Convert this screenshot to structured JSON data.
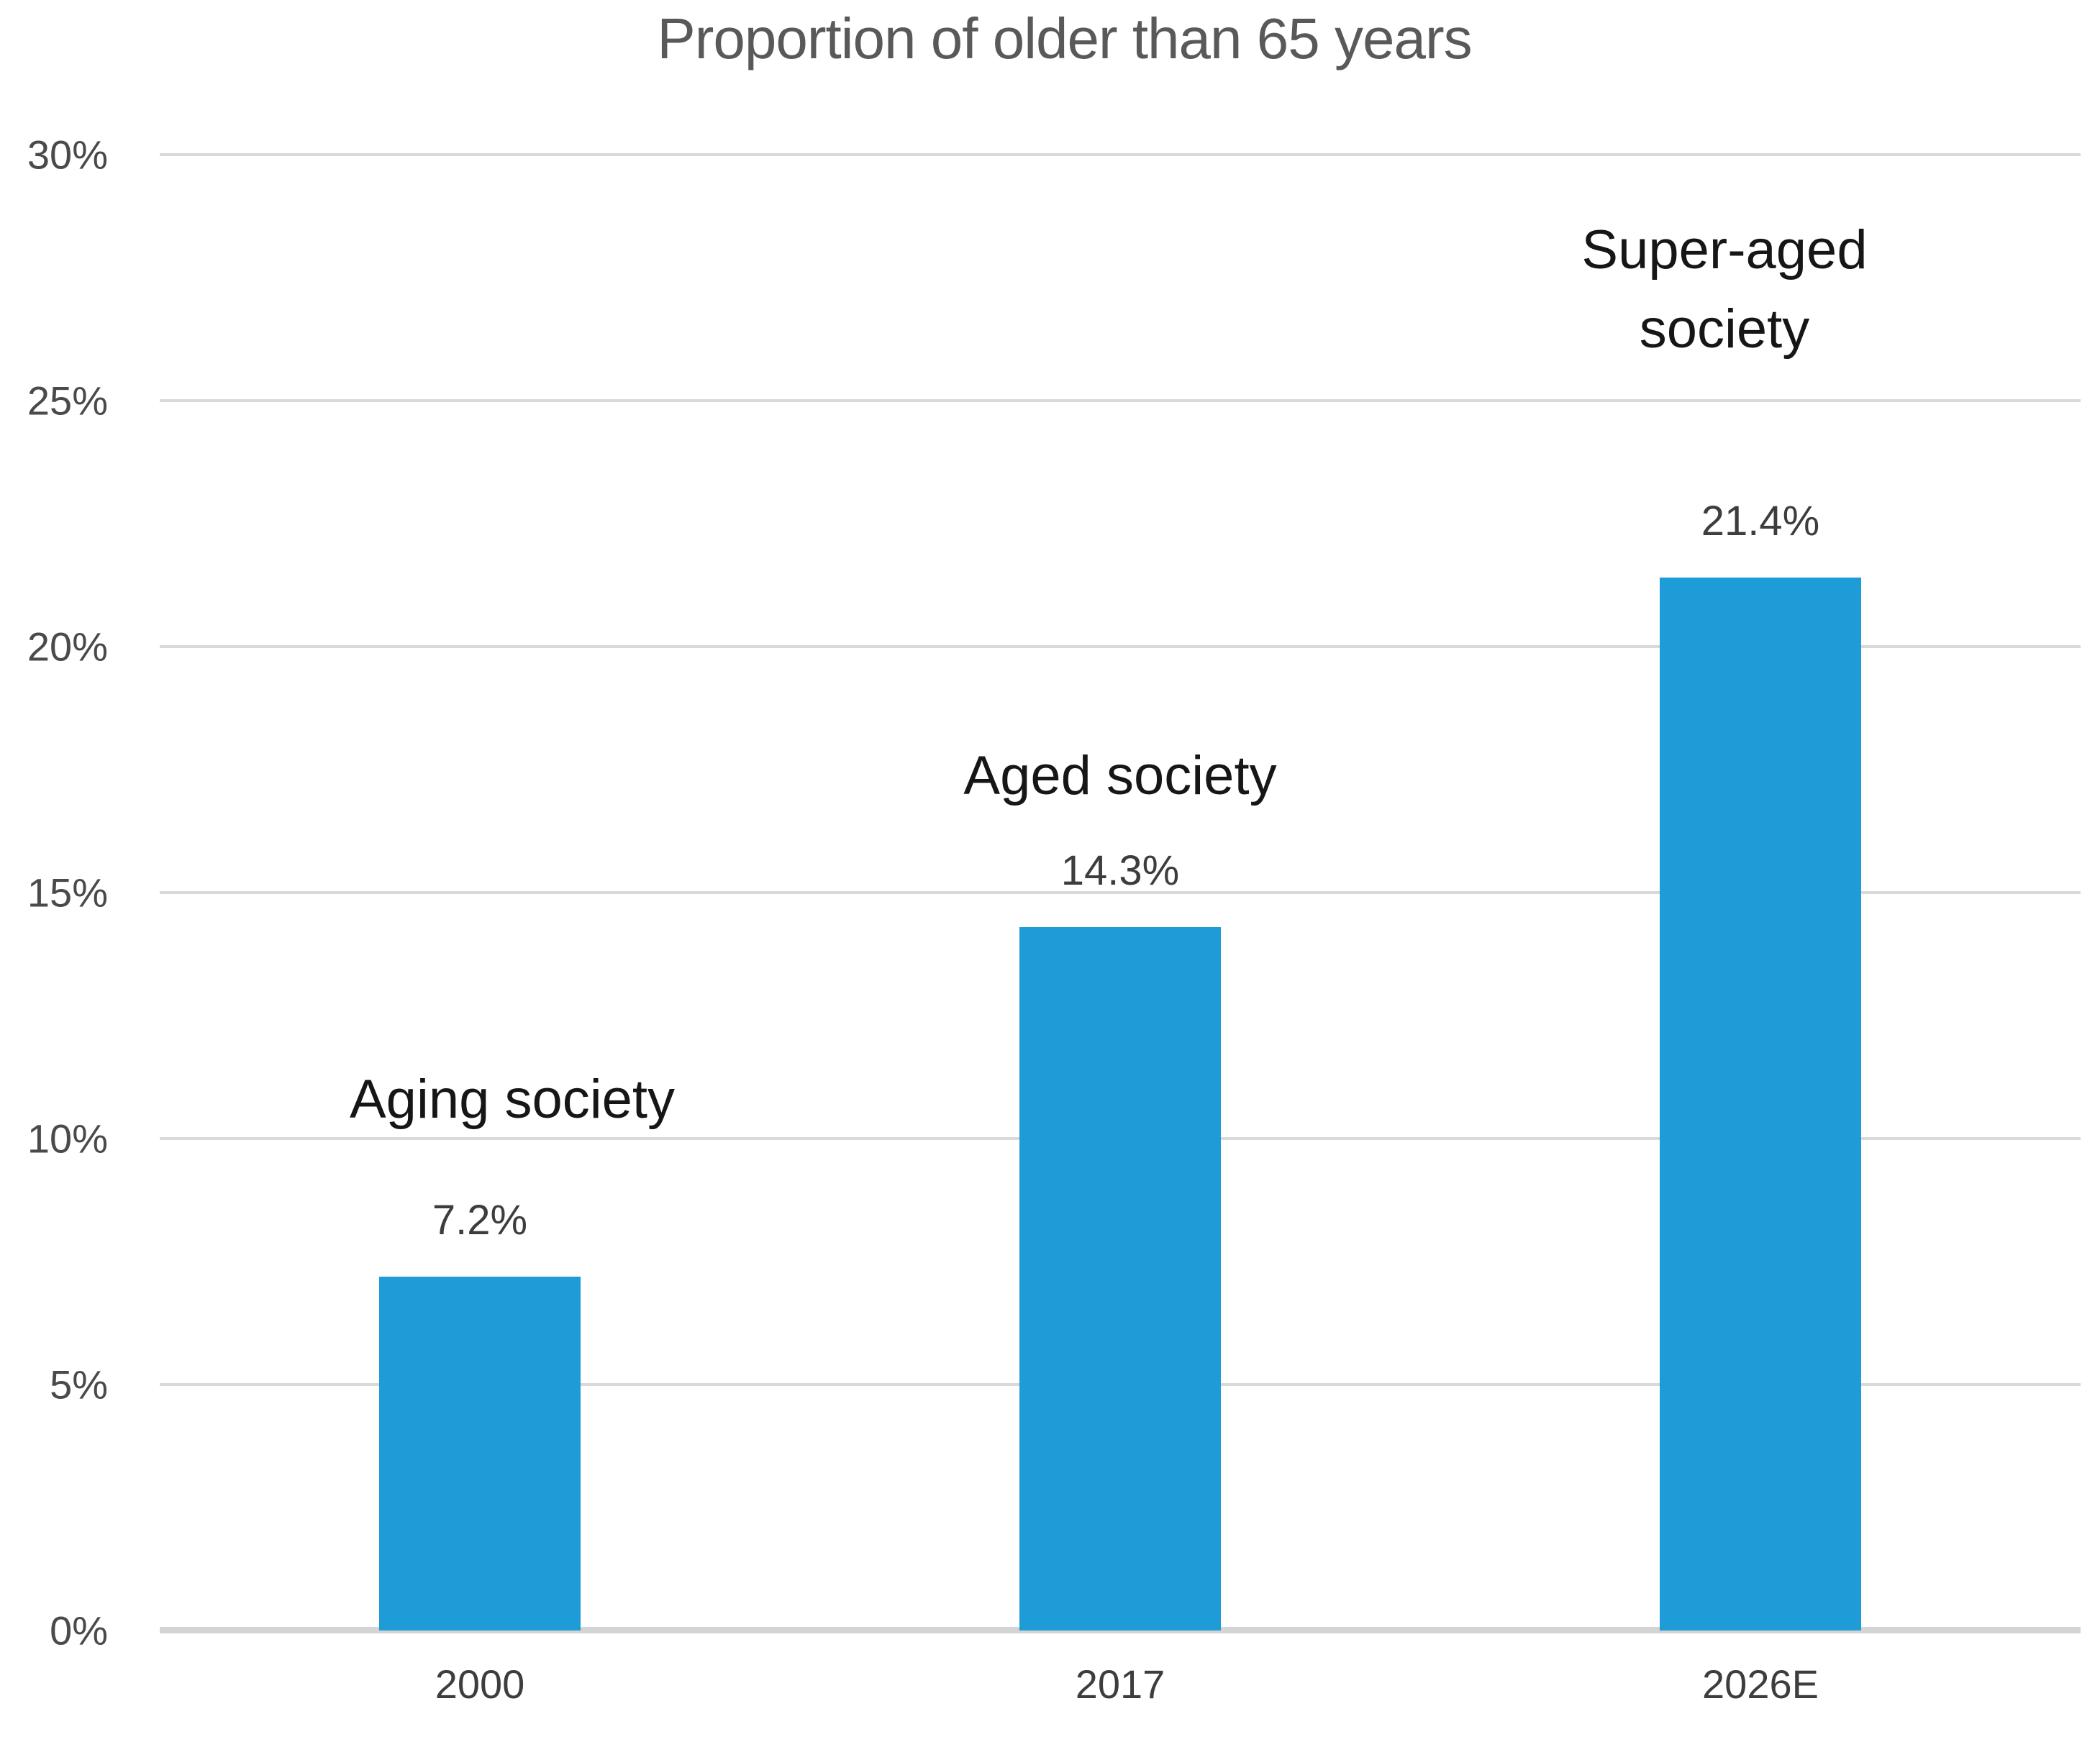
{
  "chart_data": {
    "type": "bar",
    "title": "Proportion of older than 65 years",
    "categories": [
      "2000",
      "2017",
      "2026E"
    ],
    "values": [
      7.2,
      14.3,
      21.4
    ],
    "data_labels": [
      "7.2%",
      "14.3%",
      "21.4%"
    ],
    "annotations": [
      "Aging society",
      "Aged society",
      "Super-aged society"
    ],
    "xlabel": "",
    "ylabel": "",
    "ylim": [
      0,
      30
    ],
    "ytick_step": 5,
    "ytick_labels": [
      "0%",
      "5%",
      "10%",
      "15%",
      "20%",
      "25%",
      "30%"
    ],
    "grid": true,
    "legend": false,
    "series_name": "Proportion of older than 65 years"
  },
  "colors": {
    "bar": "#1e9cd7",
    "gridline": "#d9d9d9",
    "axis_line": "#d4d4d4",
    "title": "#595959",
    "tick": "#4a4a4a",
    "category": "#3d3d3d",
    "data_label": "#3d3d3d",
    "annotation": "#161616",
    "background": "#ffffff"
  }
}
